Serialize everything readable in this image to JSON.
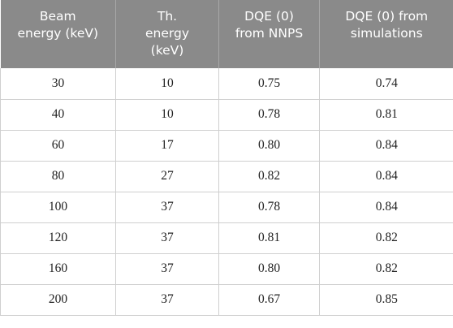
{
  "table": {
    "headers": [
      [
        "Beam",
        "energy (keV)",
        ""
      ],
      [
        "Th.",
        "energy",
        "(keV)"
      ],
      [
        "DQE (0)",
        "from NNPS",
        ""
      ],
      [
        "DQE (0) from",
        "simulations",
        ""
      ]
    ],
    "rows": [
      [
        "30",
        "10",
        "0.75",
        "0.74"
      ],
      [
        "40",
        "10",
        "0.78",
        "0.81"
      ],
      [
        "60",
        "17",
        "0.80",
        "0.84"
      ],
      [
        "80",
        "27",
        "0.82",
        "0.84"
      ],
      [
        "100",
        "37",
        "0.78",
        "0.84"
      ],
      [
        "120",
        "37",
        "0.81",
        "0.82"
      ],
      [
        "160",
        "37",
        "0.80",
        "0.82"
      ],
      [
        "200",
        "37",
        "0.67",
        "0.85"
      ]
    ]
  }
}
